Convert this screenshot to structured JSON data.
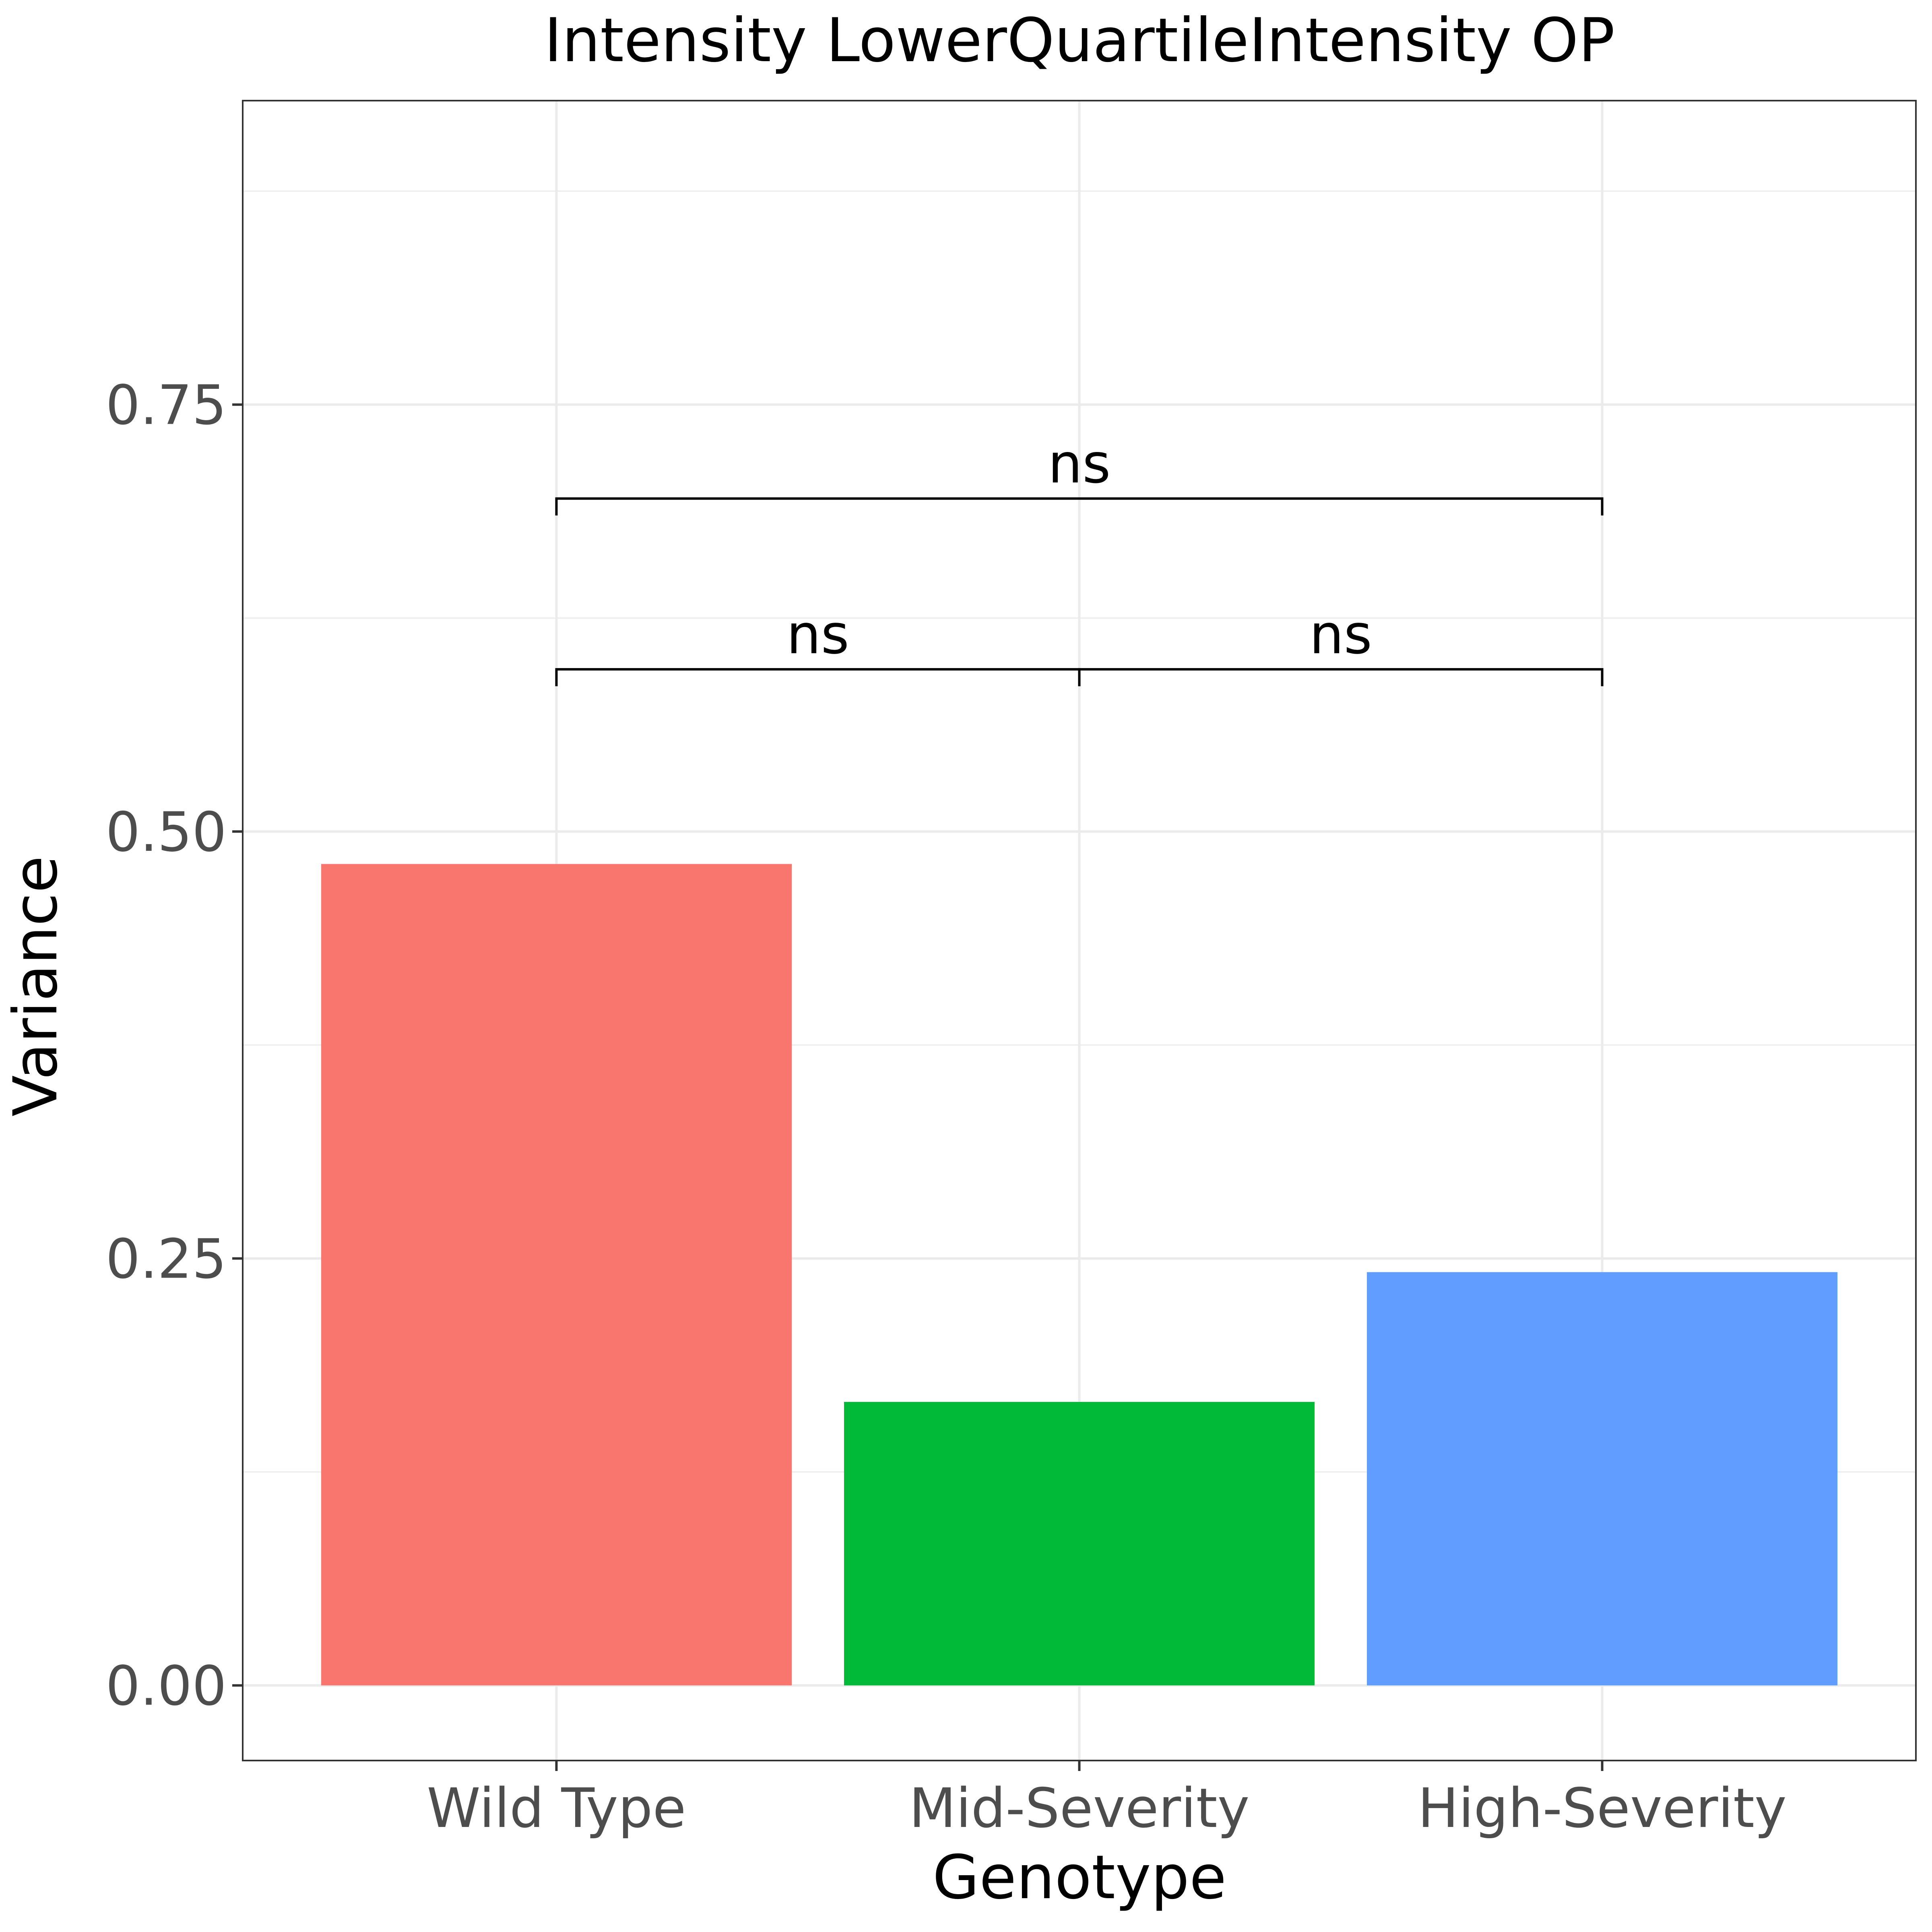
{
  "chart_data": {
    "type": "bar",
    "title": "Intensity LowerQuartileIntensity OP",
    "xlabel": "Genotype",
    "ylabel": "Variance",
    "categories": [
      "Wild Type",
      "Mid-Severity",
      "High-Severity"
    ],
    "values": [
      0.481,
      0.166,
      0.242
    ],
    "colors": [
      "#F8766D",
      "#00BA38",
      "#619CFF"
    ],
    "ylim": [
      -0.044,
      0.928
    ],
    "yticks": [
      0.0,
      0.25,
      0.5,
      0.75
    ],
    "ytick_labels": [
      "0.00",
      "0.25",
      "0.50",
      "0.75"
    ],
    "grid": true,
    "legend": "none",
    "comparisons": [
      {
        "from": 0,
        "to": 1,
        "y": 0.595,
        "label": "ns"
      },
      {
        "from": 1,
        "to": 2,
        "y": 0.595,
        "label": "ns"
      },
      {
        "from": 0,
        "to": 2,
        "y": 0.695,
        "label": "ns"
      }
    ]
  }
}
